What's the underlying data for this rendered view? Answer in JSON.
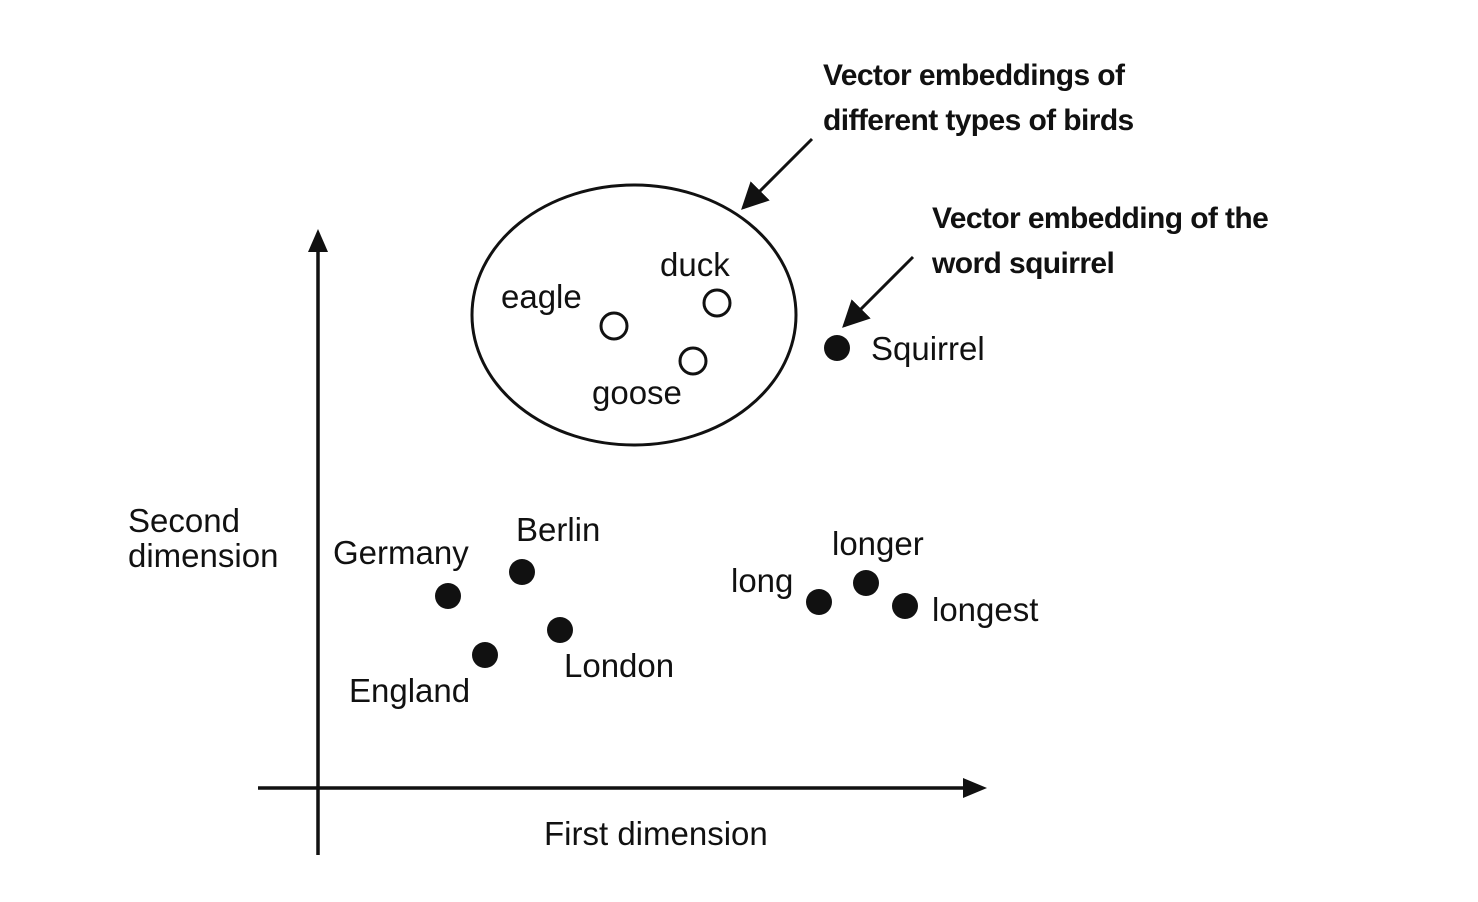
{
  "axes": {
    "x_label": "First dimension",
    "y_label_line1": "Second",
    "y_label_line2": "dimension"
  },
  "callouts": {
    "birds_line1": "Vector embeddings of",
    "birds_line2": "different types of birds",
    "squirrel_line1": "Vector embedding of the",
    "squirrel_line2": "word squirrel"
  },
  "points": {
    "eagle": "eagle",
    "duck": "duck",
    "goose": "goose",
    "squirrel": "Squirrel",
    "germany": "Germany",
    "berlin": "Berlin",
    "england": "England",
    "london": "London",
    "long": "long",
    "longer": "longer",
    "longest": "longest"
  },
  "colors": {
    "ink": "#111111",
    "background": "#ffffff"
  }
}
